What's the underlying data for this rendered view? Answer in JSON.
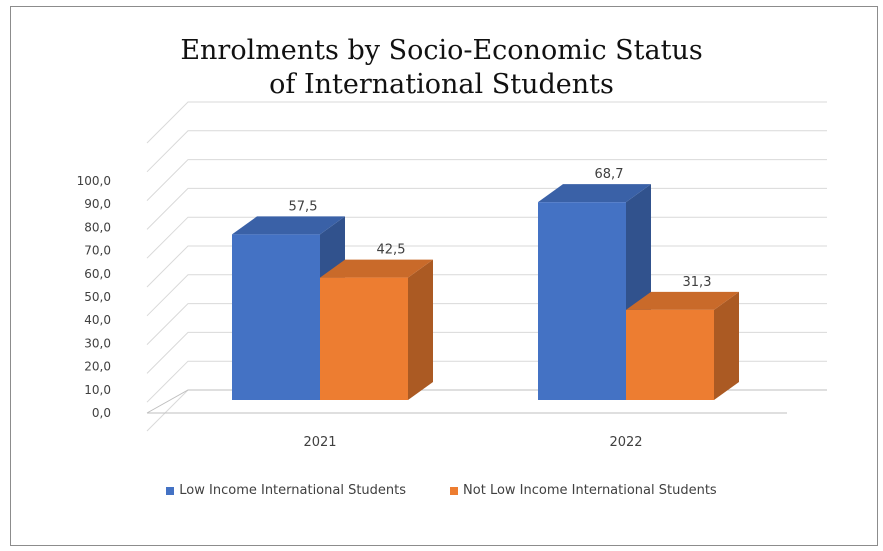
{
  "chart_data": {
    "type": "bar",
    "style": "3d-clustered-column",
    "title_lines": [
      "Enrolments by Socio-Economic Status",
      "of International Students"
    ],
    "categories": [
      "2021",
      "2022"
    ],
    "series": [
      {
        "name": "Low Income International Students",
        "values": [
          57.5,
          68.7
        ],
        "labels": [
          "57,5",
          "68,7"
        ],
        "color": "#4472c4"
      },
      {
        "name": "Not Low Income International Students",
        "values": [
          42.5,
          31.3
        ],
        "labels": [
          "42,5",
          "31,3"
        ],
        "color": "#ed7d31"
      }
    ],
    "ylim": [
      0,
      100
    ],
    "y_ticks": [
      "0,0",
      "10,0",
      "20,0",
      "30,0",
      "40,0",
      "50,0",
      "60,0",
      "70,0",
      "80,0",
      "90,0",
      "100,0"
    ],
    "grid": true,
    "legend_position": "bottom",
    "xlabel": "",
    "ylabel": ""
  }
}
